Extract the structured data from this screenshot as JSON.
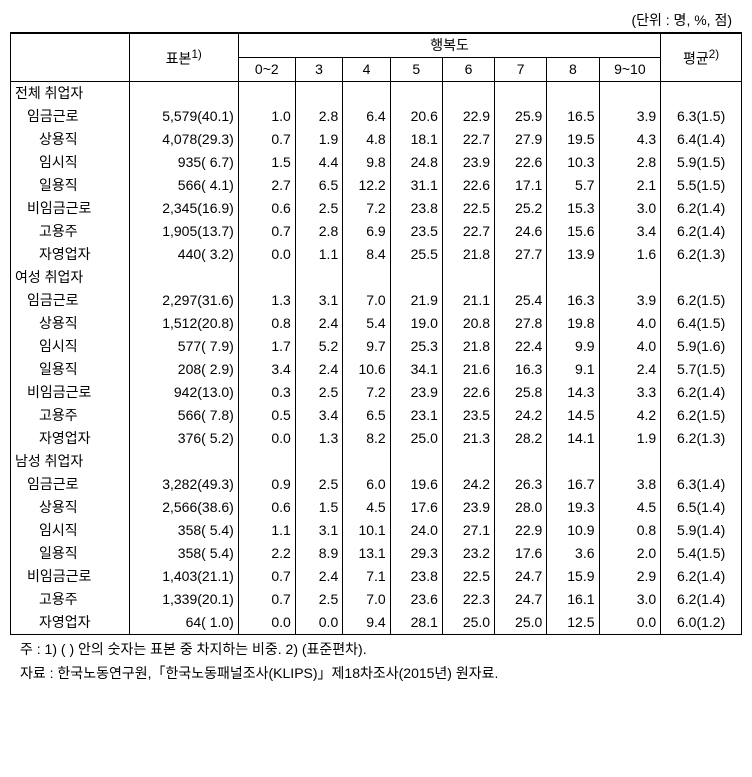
{
  "unit_label": "(단위 : 명, %, 점)",
  "headers": {
    "sample": "표본",
    "sample_sup": "1)",
    "happiness": "행복도",
    "avg": "평균",
    "avg_sup": "2)",
    "buckets": [
      "0~2",
      "3",
      "4",
      "5",
      "6",
      "7",
      "8",
      "9~10"
    ]
  },
  "sections": [
    {
      "title": "전체 취업자",
      "rows": [
        {
          "label": "임금근로",
          "indent": 1,
          "sample": "5,579(40.1)",
          "v": [
            "1.0",
            "2.8",
            "6.4",
            "20.6",
            "22.9",
            "25.9",
            "16.5",
            "3.9"
          ],
          "avg": "6.3(1.5)"
        },
        {
          "label": "상용직",
          "indent": 2,
          "sample": "4,078(29.3)",
          "v": [
            "0.7",
            "1.9",
            "4.8",
            "18.1",
            "22.7",
            "27.9",
            "19.5",
            "4.3"
          ],
          "avg": "6.4(1.4)"
        },
        {
          "label": "임시직",
          "indent": 2,
          "sample": "935( 6.7)",
          "v": [
            "1.5",
            "4.4",
            "9.8",
            "24.8",
            "23.9",
            "22.6",
            "10.3",
            "2.8"
          ],
          "avg": "5.9(1.5)"
        },
        {
          "label": "일용직",
          "indent": 2,
          "sample": "566( 4.1)",
          "v": [
            "2.7",
            "6.5",
            "12.2",
            "31.1",
            "22.6",
            "17.1",
            "5.7",
            "2.1"
          ],
          "avg": "5.5(1.5)"
        },
        {
          "label": "비임금근로",
          "indent": 1,
          "sample": "2,345(16.9)",
          "v": [
            "0.6",
            "2.5",
            "7.2",
            "23.8",
            "22.5",
            "25.2",
            "15.3",
            "3.0"
          ],
          "avg": "6.2(1.4)"
        },
        {
          "label": "고용주",
          "indent": 2,
          "sample": "1,905(13.7)",
          "v": [
            "0.7",
            "2.8",
            "6.9",
            "23.5",
            "22.7",
            "24.6",
            "15.6",
            "3.4"
          ],
          "avg": "6.2(1.4)"
        },
        {
          "label": "자영업자",
          "indent": 2,
          "sample": "440( 3.2)",
          "v": [
            "0.0",
            "1.1",
            "8.4",
            "25.5",
            "21.8",
            "27.7",
            "13.9",
            "1.6"
          ],
          "avg": "6.2(1.3)"
        }
      ]
    },
    {
      "title": "여성 취업자",
      "rows": [
        {
          "label": "임금근로",
          "indent": 1,
          "sample": "2,297(31.6)",
          "v": [
            "1.3",
            "3.1",
            "7.0",
            "21.9",
            "21.1",
            "25.4",
            "16.3",
            "3.9"
          ],
          "avg": "6.2(1.5)"
        },
        {
          "label": "상용직",
          "indent": 2,
          "sample": "1,512(20.8)",
          "v": [
            "0.8",
            "2.4",
            "5.4",
            "19.0",
            "20.8",
            "27.8",
            "19.8",
            "4.0"
          ],
          "avg": "6.4(1.5)"
        },
        {
          "label": "임시직",
          "indent": 2,
          "sample": "577( 7.9)",
          "v": [
            "1.7",
            "5.2",
            "9.7",
            "25.3",
            "21.8",
            "22.4",
            "9.9",
            "4.0"
          ],
          "avg": "5.9(1.6)"
        },
        {
          "label": "일용직",
          "indent": 2,
          "sample": "208( 2.9)",
          "v": [
            "3.4",
            "2.4",
            "10.6",
            "34.1",
            "21.6",
            "16.3",
            "9.1",
            "2.4"
          ],
          "avg": "5.7(1.5)"
        },
        {
          "label": "비임금근로",
          "indent": 1,
          "sample": "942(13.0)",
          "v": [
            "0.3",
            "2.5",
            "7.2",
            "23.9",
            "22.6",
            "25.8",
            "14.3",
            "3.3"
          ],
          "avg": "6.2(1.4)"
        },
        {
          "label": "고용주",
          "indent": 2,
          "sample": "566( 7.8)",
          "v": [
            "0.5",
            "3.4",
            "6.5",
            "23.1",
            "23.5",
            "24.2",
            "14.5",
            "4.2"
          ],
          "avg": "6.2(1.5)"
        },
        {
          "label": "자영업자",
          "indent": 2,
          "sample": "376( 5.2)",
          "v": [
            "0.0",
            "1.3",
            "8.2",
            "25.0",
            "21.3",
            "28.2",
            "14.1",
            "1.9"
          ],
          "avg": "6.2(1.3)"
        }
      ]
    },
    {
      "title": "남성 취업자",
      "rows": [
        {
          "label": "임금근로",
          "indent": 1,
          "sample": "3,282(49.3)",
          "v": [
            "0.9",
            "2.5",
            "6.0",
            "19.6",
            "24.2",
            "26.3",
            "16.7",
            "3.8"
          ],
          "avg": "6.3(1.4)"
        },
        {
          "label": "상용직",
          "indent": 2,
          "sample": "2,566(38.6)",
          "v": [
            "0.6",
            "1.5",
            "4.5",
            "17.6",
            "23.9",
            "28.0",
            "19.3",
            "4.5"
          ],
          "avg": "6.5(1.4)"
        },
        {
          "label": "임시직",
          "indent": 2,
          "sample": "358( 5.4)",
          "v": [
            "1.1",
            "3.1",
            "10.1",
            "24.0",
            "27.1",
            "22.9",
            "10.9",
            "0.8"
          ],
          "avg": "5.9(1.4)"
        },
        {
          "label": "일용직",
          "indent": 2,
          "sample": "358( 5.4)",
          "v": [
            "2.2",
            "8.9",
            "13.1",
            "29.3",
            "23.2",
            "17.6",
            "3.6",
            "2.0"
          ],
          "avg": "5.4(1.5)"
        },
        {
          "label": "비임금근로",
          "indent": 1,
          "sample": "1,403(21.1)",
          "v": [
            "0.7",
            "2.4",
            "7.1",
            "23.8",
            "22.5",
            "24.7",
            "15.9",
            "2.9"
          ],
          "avg": "6.2(1.4)"
        },
        {
          "label": "고용주",
          "indent": 2,
          "sample": "1,339(20.1)",
          "v": [
            "0.7",
            "2.5",
            "7.0",
            "23.6",
            "22.3",
            "24.7",
            "16.1",
            "3.0"
          ],
          "avg": "6.2(1.4)"
        },
        {
          "label": "자영업자",
          "indent": 2,
          "sample": "64( 1.0)",
          "v": [
            "0.0",
            "0.0",
            "9.4",
            "28.1",
            "25.0",
            "25.0",
            "12.5",
            "0.0"
          ],
          "avg": "6.0(1.2)"
        }
      ]
    }
  ],
  "footnotes": [
    "주 : 1) (  ) 안의 숫자는 표본 중 차지하는 비중. 2) (표준편차).",
    "자료 : 한국노동연구원,「한국노동패널조사(KLIPS)」제18차조사(2015년) 원자료."
  ],
  "col_widths": {
    "label": 100,
    "sample": 92,
    "bucket_narrow": 44,
    "bucket_wide": 52,
    "avg": 68
  }
}
